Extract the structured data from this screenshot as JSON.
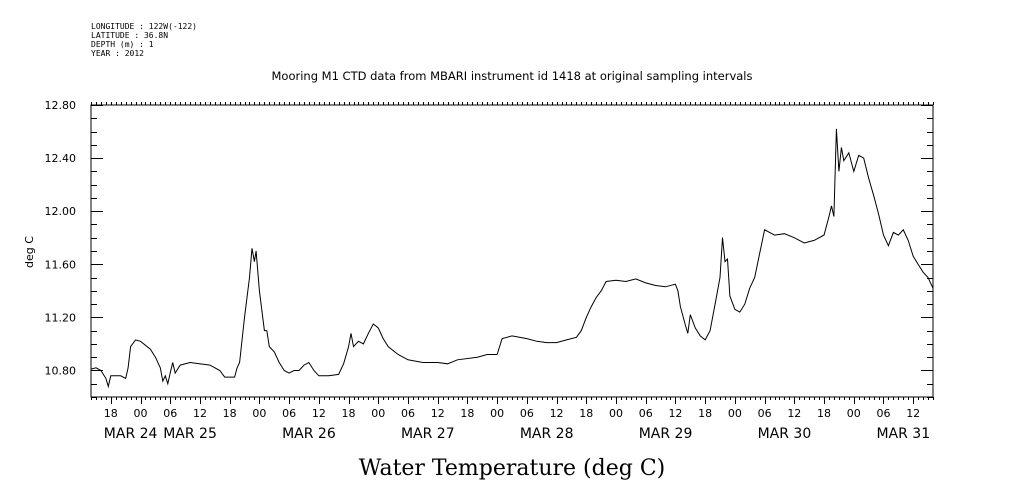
{
  "metadata": {
    "longitude": "LONGITUDE : 122W(-122)",
    "latitude": "LATITUDE : 36.8N",
    "depth": "DEPTH (m) : 1",
    "year": "YEAR : 2012"
  },
  "chart_data": {
    "type": "line",
    "title": "Mooring M1 CTD data from MBARI instrument id 1418 at original sampling intervals",
    "ylabel": "deg C",
    "xlabel": "Water Temperature (deg C)",
    "ylim": [
      10.6,
      12.8
    ],
    "xlim": [
      "2012-03-24 14:00",
      "2012-03-31 16:00"
    ],
    "grid": false,
    "yticks": [
      "10.80",
      "11.20",
      "11.60",
      "12.00",
      "12.40",
      "12.80"
    ],
    "hour_ticks": [
      {
        "t": "2012-03-24 18:00",
        "label": "18"
      },
      {
        "t": "2012-03-25 00:00",
        "label": "00"
      },
      {
        "t": "2012-03-25 06:00",
        "label": "06"
      },
      {
        "t": "2012-03-25 12:00",
        "label": "12"
      },
      {
        "t": "2012-03-25 18:00",
        "label": "18"
      },
      {
        "t": "2012-03-26 00:00",
        "label": "00"
      },
      {
        "t": "2012-03-26 06:00",
        "label": "06"
      },
      {
        "t": "2012-03-26 12:00",
        "label": "12"
      },
      {
        "t": "2012-03-26 18:00",
        "label": "18"
      },
      {
        "t": "2012-03-27 00:00",
        "label": "00"
      },
      {
        "t": "2012-03-27 06:00",
        "label": "06"
      },
      {
        "t": "2012-03-27 12:00",
        "label": "12"
      },
      {
        "t": "2012-03-27 18:00",
        "label": "18"
      },
      {
        "t": "2012-03-28 00:00",
        "label": "00"
      },
      {
        "t": "2012-03-28 06:00",
        "label": "06"
      },
      {
        "t": "2012-03-28 12:00",
        "label": "12"
      },
      {
        "t": "2012-03-28 18:00",
        "label": "18"
      },
      {
        "t": "2012-03-29 00:00",
        "label": "00"
      },
      {
        "t": "2012-03-29 06:00",
        "label": "06"
      },
      {
        "t": "2012-03-29 12:00",
        "label": "12"
      },
      {
        "t": "2012-03-29 18:00",
        "label": "18"
      },
      {
        "t": "2012-03-30 00:00",
        "label": "00"
      },
      {
        "t": "2012-03-30 06:00",
        "label": "06"
      },
      {
        "t": "2012-03-30 12:00",
        "label": "12"
      },
      {
        "t": "2012-03-30 18:00",
        "label": "18"
      },
      {
        "t": "2012-03-31 00:00",
        "label": "00"
      },
      {
        "t": "2012-03-31 06:00",
        "label": "06"
      },
      {
        "t": "2012-03-31 12:00",
        "label": "12"
      }
    ],
    "date_labels": [
      {
        "t": "2012-03-24 22:00",
        "label": "MAR 24"
      },
      {
        "t": "2012-03-25 10:00",
        "label": "MAR 25"
      },
      {
        "t": "2012-03-26 10:00",
        "label": "MAR 26"
      },
      {
        "t": "2012-03-27 10:00",
        "label": "MAR 27"
      },
      {
        "t": "2012-03-28 10:00",
        "label": "MAR 28"
      },
      {
        "t": "2012-03-29 10:00",
        "label": "MAR 29"
      },
      {
        "t": "2012-03-30 10:00",
        "label": "MAR 30"
      },
      {
        "t": "2012-03-31 10:00",
        "label": "MAR 31"
      }
    ],
    "series": [
      {
        "color": "#000000",
        "points": [
          [
            "2012-03-24 14:00",
            10.81
          ],
          [
            "2012-03-24 15:00",
            10.82
          ],
          [
            "2012-03-24 16:00",
            10.8
          ],
          [
            "2012-03-24 17:00",
            10.74
          ],
          [
            "2012-03-24 17:30",
            10.68
          ],
          [
            "2012-03-24 18:00",
            10.76
          ],
          [
            "2012-03-24 20:00",
            10.76
          ],
          [
            "2012-03-24 21:00",
            10.74
          ],
          [
            "2012-03-24 21:30",
            10.82
          ],
          [
            "2012-03-24 22:00",
            10.98
          ],
          [
            "2012-03-24 23:00",
            11.03
          ],
          [
            "2012-03-25 00:00",
            11.02
          ],
          [
            "2012-03-25 02:00",
            10.96
          ],
          [
            "2012-03-25 03:00",
            10.9
          ],
          [
            "2012-03-25 04:00",
            10.82
          ],
          [
            "2012-03-25 04:30",
            10.72
          ],
          [
            "2012-03-25 05:00",
            10.76
          ],
          [
            "2012-03-25 05:30",
            10.7
          ],
          [
            "2012-03-25 06:00",
            10.78
          ],
          [
            "2012-03-25 06:30",
            10.86
          ],
          [
            "2012-03-25 07:00",
            10.78
          ],
          [
            "2012-03-25 08:00",
            10.84
          ],
          [
            "2012-03-25 10:00",
            10.86
          ],
          [
            "2012-03-25 14:00",
            10.84
          ],
          [
            "2012-03-25 16:00",
            10.8
          ],
          [
            "2012-03-25 17:00",
            10.75
          ],
          [
            "2012-03-25 19:00",
            10.75
          ],
          [
            "2012-03-25 19:30",
            10.82
          ],
          [
            "2012-03-25 20:00",
            10.86
          ],
          [
            "2012-03-25 21:00",
            11.2
          ],
          [
            "2012-03-25 22:00",
            11.5
          ],
          [
            "2012-03-25 22:30",
            11.72
          ],
          [
            "2012-03-25 23:00",
            11.62
          ],
          [
            "2012-03-25 23:20",
            11.7
          ],
          [
            "2012-03-26 00:00",
            11.4
          ],
          [
            "2012-03-26 01:00",
            11.1
          ],
          [
            "2012-03-26 01:30",
            11.1
          ],
          [
            "2012-03-26 02:00",
            10.98
          ],
          [
            "2012-03-26 03:00",
            10.94
          ],
          [
            "2012-03-26 04:00",
            10.86
          ],
          [
            "2012-03-26 05:00",
            10.8
          ],
          [
            "2012-03-26 06:00",
            10.78
          ],
          [
            "2012-03-26 07:00",
            10.8
          ],
          [
            "2012-03-26 08:00",
            10.8
          ],
          [
            "2012-03-26 09:00",
            10.84
          ],
          [
            "2012-03-26 10:00",
            10.86
          ],
          [
            "2012-03-26 11:00",
            10.8
          ],
          [
            "2012-03-26 12:00",
            10.76
          ],
          [
            "2012-03-26 14:00",
            10.76
          ],
          [
            "2012-03-26 16:00",
            10.77
          ],
          [
            "2012-03-26 17:00",
            10.85
          ],
          [
            "2012-03-26 18:00",
            10.98
          ],
          [
            "2012-03-26 18:30",
            11.08
          ],
          [
            "2012-03-26 19:00",
            10.98
          ],
          [
            "2012-03-26 20:00",
            11.02
          ],
          [
            "2012-03-26 21:00",
            11.0
          ],
          [
            "2012-03-26 22:00",
            11.08
          ],
          [
            "2012-03-26 23:00",
            11.15
          ],
          [
            "2012-03-27 00:00",
            11.12
          ],
          [
            "2012-03-27 01:00",
            11.04
          ],
          [
            "2012-03-27 02:00",
            10.98
          ],
          [
            "2012-03-27 04:00",
            10.92
          ],
          [
            "2012-03-27 06:00",
            10.88
          ],
          [
            "2012-03-27 09:00",
            10.86
          ],
          [
            "2012-03-27 12:00",
            10.86
          ],
          [
            "2012-03-27 14:00",
            10.85
          ],
          [
            "2012-03-27 16:00",
            10.88
          ],
          [
            "2012-03-27 20:00",
            10.9
          ],
          [
            "2012-03-27 22:00",
            10.92
          ],
          [
            "2012-03-28 00:00",
            10.92
          ],
          [
            "2012-03-28 00:30",
            10.98
          ],
          [
            "2012-03-28 01:00",
            11.04
          ],
          [
            "2012-03-28 03:00",
            11.06
          ],
          [
            "2012-03-28 06:00",
            11.04
          ],
          [
            "2012-03-28 08:00",
            11.02
          ],
          [
            "2012-03-28 10:00",
            11.01
          ],
          [
            "2012-03-28 12:00",
            11.01
          ],
          [
            "2012-03-28 14:00",
            11.03
          ],
          [
            "2012-03-28 16:00",
            11.05
          ],
          [
            "2012-03-28 17:00",
            11.1
          ],
          [
            "2012-03-28 18:00",
            11.2
          ],
          [
            "2012-03-28 19:00",
            11.28
          ],
          [
            "2012-03-28 20:00",
            11.35
          ],
          [
            "2012-03-28 21:00",
            11.4
          ],
          [
            "2012-03-28 22:00",
            11.47
          ],
          [
            "2012-03-29 00:00",
            11.48
          ],
          [
            "2012-03-29 02:00",
            11.47
          ],
          [
            "2012-03-29 04:00",
            11.49
          ],
          [
            "2012-03-29 06:00",
            11.46
          ],
          [
            "2012-03-29 08:00",
            11.44
          ],
          [
            "2012-03-29 10:00",
            11.43
          ],
          [
            "2012-03-29 12:00",
            11.45
          ],
          [
            "2012-03-29 12:30",
            11.4
          ],
          [
            "2012-03-29 13:00",
            11.28
          ],
          [
            "2012-03-29 14:00",
            11.14
          ],
          [
            "2012-03-29 14:30",
            11.08
          ],
          [
            "2012-03-29 15:00",
            11.22
          ],
          [
            "2012-03-29 16:00",
            11.12
          ],
          [
            "2012-03-29 17:00",
            11.06
          ],
          [
            "2012-03-29 18:00",
            11.03
          ],
          [
            "2012-03-29 19:00",
            11.1
          ],
          [
            "2012-03-29 20:00",
            11.3
          ],
          [
            "2012-03-29 21:00",
            11.5
          ],
          [
            "2012-03-29 21:30",
            11.8
          ],
          [
            "2012-03-29 22:00",
            11.62
          ],
          [
            "2012-03-29 22:30",
            11.64
          ],
          [
            "2012-03-29 23:00",
            11.36
          ],
          [
            "2012-03-30 00:00",
            11.26
          ],
          [
            "2012-03-30 01:00",
            11.24
          ],
          [
            "2012-03-30 02:00",
            11.3
          ],
          [
            "2012-03-30 03:00",
            11.42
          ],
          [
            "2012-03-30 04:00",
            11.5
          ],
          [
            "2012-03-30 05:00",
            11.68
          ],
          [
            "2012-03-30 06:00",
            11.86
          ],
          [
            "2012-03-30 07:00",
            11.84
          ],
          [
            "2012-03-30 08:00",
            11.82
          ],
          [
            "2012-03-30 10:00",
            11.83
          ],
          [
            "2012-03-30 12:00",
            11.8
          ],
          [
            "2012-03-30 14:00",
            11.76
          ],
          [
            "2012-03-30 16:00",
            11.78
          ],
          [
            "2012-03-30 18:00",
            11.82
          ],
          [
            "2012-03-30 19:00",
            11.96
          ],
          [
            "2012-03-30 19:30",
            12.04
          ],
          [
            "2012-03-30 20:00",
            11.96
          ],
          [
            "2012-03-30 20:30",
            12.62
          ],
          [
            "2012-03-30 21:00",
            12.3
          ],
          [
            "2012-03-30 21:30",
            12.48
          ],
          [
            "2012-03-30 22:00",
            12.38
          ],
          [
            "2012-03-30 23:00",
            12.44
          ],
          [
            "2012-03-31 00:00",
            12.3
          ],
          [
            "2012-03-31 01:00",
            12.42
          ],
          [
            "2012-03-31 02:00",
            12.4
          ],
          [
            "2012-03-31 03:00",
            12.25
          ],
          [
            "2012-03-31 04:00",
            12.12
          ],
          [
            "2012-03-31 05:00",
            11.98
          ],
          [
            "2012-03-31 06:00",
            11.82
          ],
          [
            "2012-03-31 07:00",
            11.74
          ],
          [
            "2012-03-31 08:00",
            11.84
          ],
          [
            "2012-03-31 09:00",
            11.82
          ],
          [
            "2012-03-31 10:00",
            11.86
          ],
          [
            "2012-03-31 11:00",
            11.78
          ],
          [
            "2012-03-31 12:00",
            11.66
          ],
          [
            "2012-03-31 13:00",
            11.6
          ],
          [
            "2012-03-31 14:00",
            11.54
          ],
          [
            "2012-03-31 15:00",
            11.5
          ],
          [
            "2012-03-31 16:00",
            11.42
          ]
        ]
      }
    ]
  }
}
